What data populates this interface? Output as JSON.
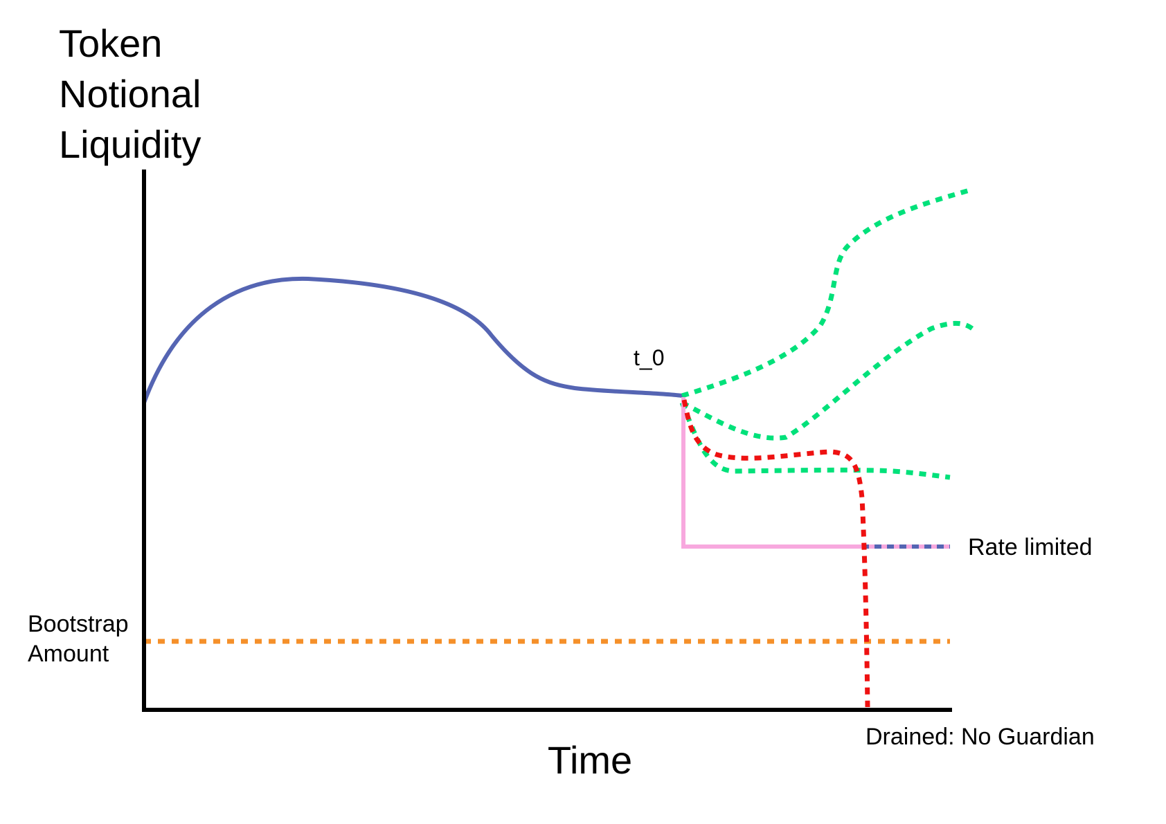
{
  "diagram": {
    "y_axis_label_lines": [
      "Token",
      "Notional",
      "Liquidity"
    ],
    "x_axis_label": "Time",
    "t0_label": "t_0",
    "rate_limited_label": "Rate limited",
    "drained_label": "Drained: No Guardian",
    "bootstrap_label_lines": [
      "Bootstrap",
      "Amount"
    ]
  },
  "colors": {
    "axes": "#000000",
    "history_line": "#5565b3",
    "positive_scenarios": "#00e17a",
    "drain_scenario": "#ee1111",
    "rate_limit_path": "#f7a8de",
    "bootstrap_line": "#f5902a",
    "rate_limited_overlap": "#5565b3"
  },
  "legend_semantics": {
    "history": "solid-line",
    "scenarios": "dotted-lines",
    "rate_limit": "solid-pink-line",
    "bootstrap": "dotted-orange-line"
  }
}
